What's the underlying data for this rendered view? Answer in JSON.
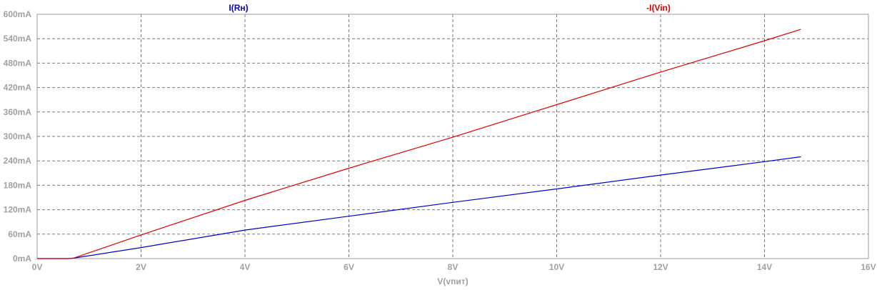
{
  "chart_data": {
    "type": "line",
    "xlabel": "V(vпит)",
    "xlim": [
      0,
      16
    ],
    "ylim": [
      0,
      600
    ],
    "x_ticks": [
      {
        "value": 0,
        "label": "0V"
      },
      {
        "value": 2,
        "label": "2V"
      },
      {
        "value": 4,
        "label": "4V"
      },
      {
        "value": 6,
        "label": "6V"
      },
      {
        "value": 8,
        "label": "8V"
      },
      {
        "value": 10,
        "label": "10V"
      },
      {
        "value": 12,
        "label": "12V"
      },
      {
        "value": 14,
        "label": "14V"
      },
      {
        "value": 16,
        "label": "16V"
      }
    ],
    "y_ticks": [
      {
        "value": 0,
        "label": "0mA"
      },
      {
        "value": 60,
        "label": "60mA"
      },
      {
        "value": 120,
        "label": "120mA"
      },
      {
        "value": 180,
        "label": "180mA"
      },
      {
        "value": 240,
        "label": "240mA"
      },
      {
        "value": 300,
        "label": "300mA"
      },
      {
        "value": 360,
        "label": "360mA"
      },
      {
        "value": 420,
        "label": "420mA"
      },
      {
        "value": 480,
        "label": "480mA"
      },
      {
        "value": 540,
        "label": "540mA"
      },
      {
        "value": 600,
        "label": "600mA"
      }
    ],
    "grid": true,
    "series": [
      {
        "name": "I(Rн)",
        "color": "#0000c8",
        "x": [
          0,
          0.6,
          0.7,
          2,
          4,
          6,
          8,
          10,
          12,
          14,
          14.7
        ],
        "y": [
          0,
          0,
          1,
          27,
          70,
          104,
          138,
          171,
          205,
          238,
          250
        ]
      },
      {
        "name": "-I(Vin)",
        "color": "#e00000",
        "x": [
          0,
          0.6,
          0.7,
          2,
          4,
          6,
          8,
          10,
          12,
          14,
          14.7
        ],
        "y": [
          0,
          0,
          1,
          58,
          143,
          222,
          298,
          378,
          458,
          535,
          563
        ]
      }
    ]
  }
}
